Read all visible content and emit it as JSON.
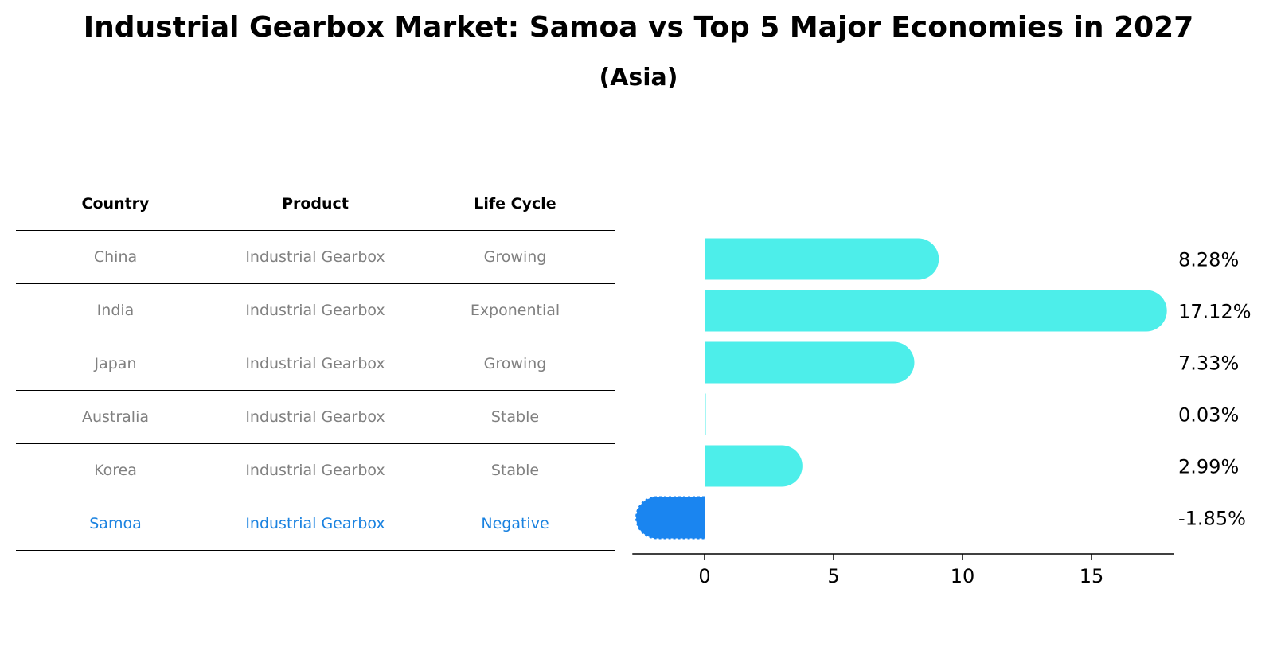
{
  "header": {
    "title": "Industrial Gearbox Market: Samoa vs Top 5 Major Economies in 2027",
    "subtitle": "(Asia)"
  },
  "table": {
    "columns": [
      "Country",
      "Product",
      "Life Cycle"
    ],
    "rows": [
      {
        "country": "China",
        "product": "Industrial Gearbox",
        "life_cycle": "Growing"
      },
      {
        "country": "India",
        "product": "Industrial Gearbox",
        "life_cycle": "Exponential"
      },
      {
        "country": "Japan",
        "product": "Industrial Gearbox",
        "life_cycle": "Growing"
      },
      {
        "country": "Australia",
        "product": "Industrial Gearbox",
        "life_cycle": "Stable"
      },
      {
        "country": "Korea",
        "product": "Industrial Gearbox",
        "life_cycle": "Stable"
      },
      {
        "country": "Samoa",
        "product": "Industrial Gearbox",
        "life_cycle": "Negative"
      }
    ]
  },
  "chart_data": {
    "type": "bar",
    "orientation": "horizontal",
    "categories": [
      "China",
      "India",
      "Japan",
      "Australia",
      "Korea",
      "Samoa"
    ],
    "values": [
      8.28,
      17.12,
      7.33,
      0.03,
      2.99,
      -1.85
    ],
    "value_labels": [
      "8.28%",
      "17.12%",
      "7.33%",
      "0.03%",
      "2.99%",
      "-1.85%"
    ],
    "xlim": [
      -2.8,
      18.2
    ],
    "xticks": [
      0,
      5,
      10,
      15
    ],
    "grid": false,
    "colors": {
      "default": "#4deeea",
      "highlight": "#1a85f0"
    },
    "highlight_category": "Samoa"
  }
}
